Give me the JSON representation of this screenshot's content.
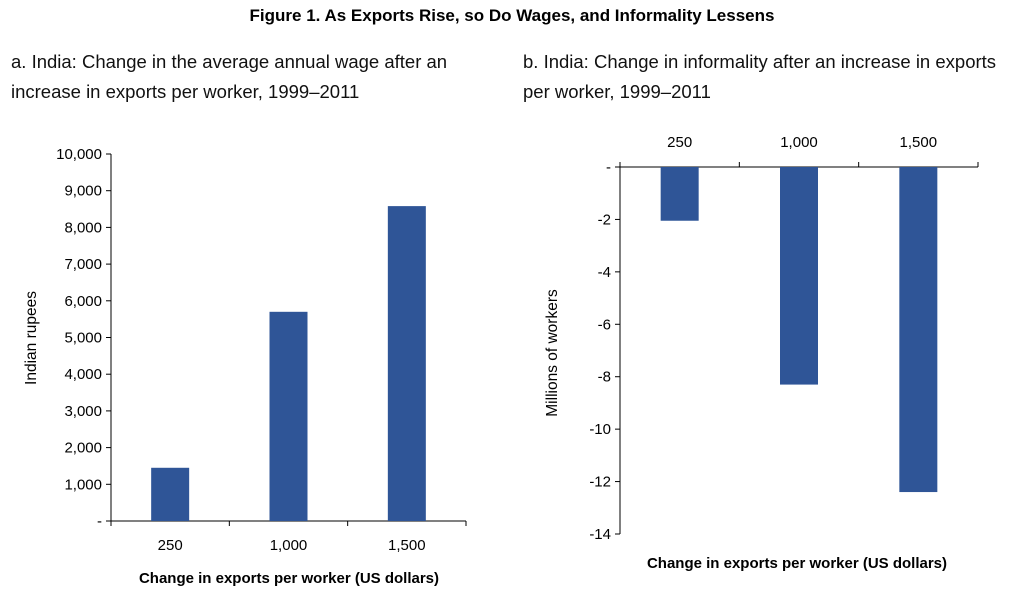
{
  "figure_title": "Figure 1. As Exports Rise, so Do Wages, and Informality Lessens",
  "panels": {
    "a": {
      "subtitle": "a. India: Change in the average annual wage after an increase in exports per worker, 1999–2011"
    },
    "b": {
      "subtitle": "b. India: Change in informality after an increase in exports per worker, 1999–2011"
    }
  },
  "chart_data": [
    {
      "type": "bar",
      "title": "a. India: Change in the average annual wage after an increase in exports per worker, 1999–2011",
      "categories": [
        "250",
        "1,000",
        "1,500"
      ],
      "values": [
        1450,
        5700,
        8580
      ],
      "xlabel": "Change in exports per worker (US dollars)",
      "ylabel": "Indian rupees",
      "ylim": [
        0,
        10000
      ],
      "yticks": [
        0,
        1000,
        2000,
        3000,
        4000,
        5000,
        6000,
        7000,
        8000,
        9000,
        10000
      ],
      "ytick_labels": [
        "-",
        "1,000",
        "2,000",
        "3,000",
        "4,000",
        "5,000",
        "6,000",
        "7,000",
        "8,000",
        "9,000",
        "10,000"
      ],
      "grid": false,
      "bar_color": "#2f5597"
    },
    {
      "type": "bar",
      "title": "b. India: Change in informality after an increase in exports per worker, 1999–2011",
      "categories": [
        "250",
        "1,000",
        "1,500"
      ],
      "values": [
        -2.05,
        -8.3,
        -12.4
      ],
      "xlabel": "Change in exports per worker (US dollars)",
      "ylabel": "Millions of workers",
      "ylim": [
        -14,
        0
      ],
      "yticks": [
        0,
        -2,
        -4,
        -6,
        -8,
        -10,
        -12,
        -14
      ],
      "ytick_labels": [
        "-",
        "-2",
        "-4",
        "-6",
        "-8",
        "-10",
        "-12",
        "-14"
      ],
      "category_axis_position": "top",
      "grid": false,
      "bar_color": "#2f5597"
    }
  ]
}
